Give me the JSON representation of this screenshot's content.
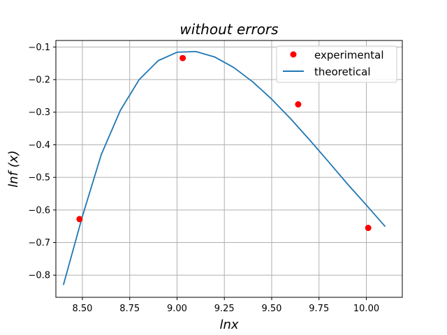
{
  "chart_data": {
    "type": "line",
    "title": "without errors",
    "xlabel": "lnx",
    "ylabel": "lnf (x)",
    "xlim": [
      8.36,
      10.19
    ],
    "ylim": [
      -0.868,
      -0.08
    ],
    "xticks": [
      8.5,
      8.75,
      9.0,
      9.25,
      9.5,
      9.75,
      10.0
    ],
    "xtick_labels": [
      "8.50",
      "8.75",
      "9.00",
      "9.25",
      "9.50",
      "9.75",
      "10.00"
    ],
    "yticks": [
      -0.1,
      -0.2,
      -0.3,
      -0.4,
      -0.5,
      -0.6,
      -0.7,
      -0.8
    ],
    "ytick_labels": [
      "−0.1",
      "−0.2",
      "−0.3",
      "−0.4",
      "−0.5",
      "−0.6",
      "−0.7",
      "−0.8"
    ],
    "grid": true,
    "legend_position": "top-right",
    "series": [
      {
        "name": "experimental",
        "kind": "scatter",
        "color": "#ff0000",
        "x": [
          8.485,
          9.03,
          9.64,
          10.01
        ],
        "y": [
          -0.628,
          -0.134,
          -0.276,
          -0.655
        ]
      },
      {
        "name": "theoretical",
        "kind": "line",
        "color": "#1f77b4",
        "x": [
          8.4,
          8.5,
          8.6,
          8.7,
          8.8,
          8.9,
          9.0,
          9.1,
          9.2,
          9.3,
          9.4,
          9.5,
          9.6,
          9.7,
          9.8,
          9.9,
          10.0,
          10.1
        ],
        "y": [
          -0.83,
          -0.62,
          -0.43,
          -0.295,
          -0.2,
          -0.142,
          -0.116,
          -0.114,
          -0.131,
          -0.163,
          -0.207,
          -0.26,
          -0.32,
          -0.385,
          -0.452,
          -0.52,
          -0.585,
          -0.651
        ]
      }
    ]
  }
}
